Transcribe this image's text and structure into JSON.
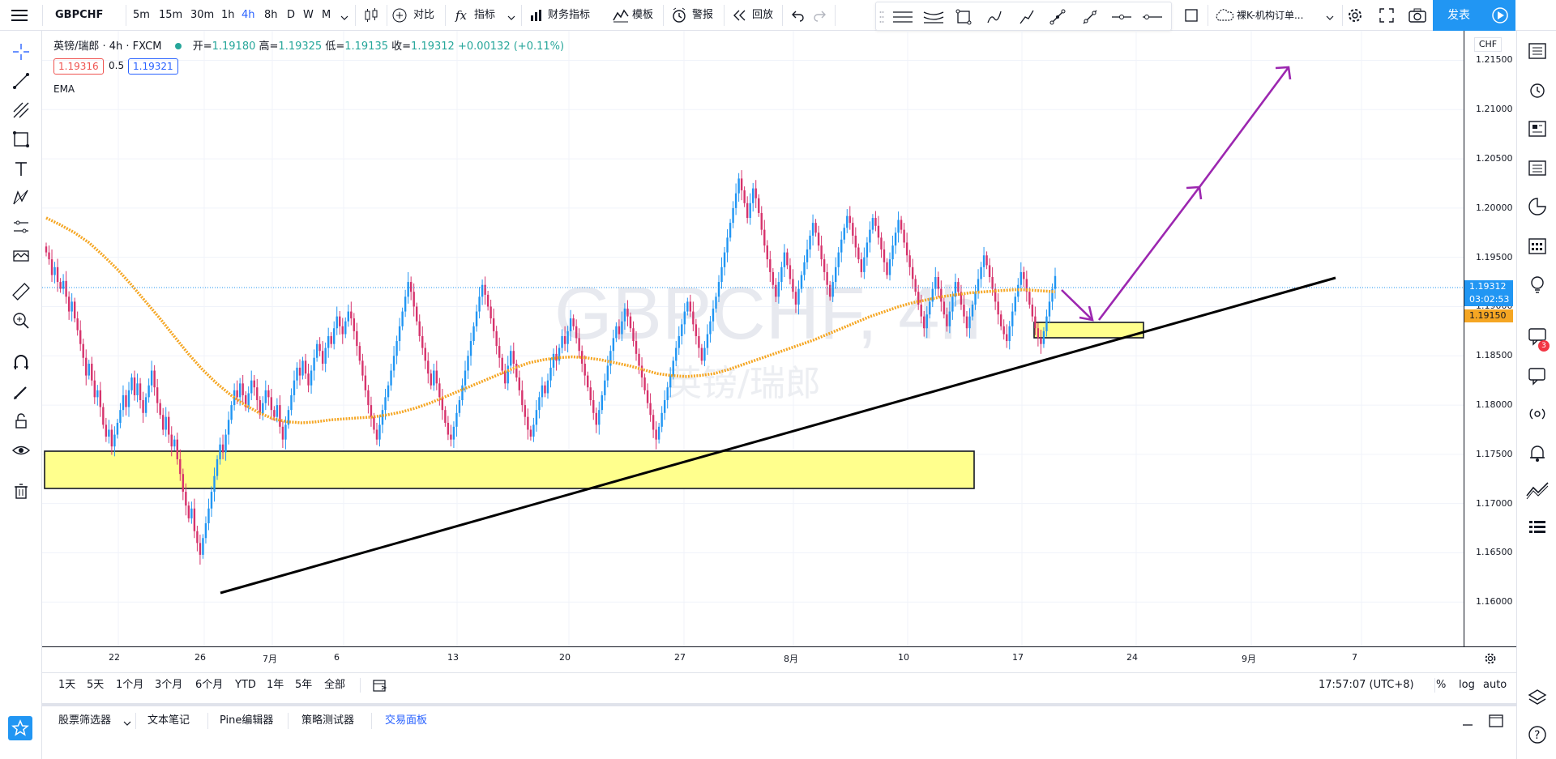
{
  "topbar": {
    "symbol": "GBPCHF",
    "intervals": [
      "5m",
      "15m",
      "30m",
      "1h",
      "4h",
      "8h",
      "D",
      "W",
      "M"
    ],
    "active_interval": "4h",
    "compare_label": "对比",
    "indicators_label": "指标",
    "financials_label": "财务指标",
    "templates_label": "模板",
    "alert_label": "警报",
    "replay_label": "回放",
    "layout_name": "裸K-机构订单...",
    "publish_label": "发表"
  },
  "legend": {
    "title": "英镑/瑞郎 · 4h · FXCM",
    "open_label": "开=",
    "open_value": "1.19180",
    "high_label": "高=",
    "high_value": "1.19325",
    "low_label": "低=",
    "low_value": "1.19135",
    "close_label": "收=",
    "close_value": "1.19312",
    "change": "+0.00132 (+0.11%)",
    "bid": "1.19316",
    "spread": "0.5",
    "ask": "1.19321",
    "indicator": "EMA"
  },
  "watermark": {
    "symbol": "GBPCHF, 4h",
    "name": "英镑/瑞郎"
  },
  "price_axis": {
    "currency": "CHF",
    "ticks": [
      "1.21500",
      "1.21000",
      "1.20500",
      "1.20000",
      "1.19500",
      "1.19000",
      "1.18500",
      "1.18000",
      "1.17500",
      "1.17000",
      "1.16500",
      "1.16000"
    ],
    "last_price": "1.19312",
    "countdown": "03:02:53",
    "ema_value": "1.19150"
  },
  "time_axis": {
    "ticks": [
      "22",
      "26",
      "7月",
      "6",
      "13",
      "20",
      "27",
      "8月",
      "10",
      "17",
      "24",
      "9月",
      "7"
    ]
  },
  "bottombar": {
    "ranges": [
      "1天",
      "5天",
      "1个月",
      "3个月",
      "6个月",
      "YTD",
      "1年",
      "5年",
      "全部"
    ],
    "clock": "17:57:07 (UTC+8)",
    "percent_label": "%",
    "log_label": "log",
    "auto_label": "auto"
  },
  "panels": {
    "tabs": [
      "股票筛选器",
      "文本笔记",
      "Pine编辑器",
      "策略测试器",
      "交易面板"
    ],
    "active": "交易面板"
  },
  "notifications": {
    "badge": "3"
  },
  "colors": {
    "up": "#26a69a",
    "down": "#ef5350",
    "candle_up": "#2196f3",
    "candle_down": "#d6336c",
    "ema": "#f5a623",
    "zone": "#ffff8d",
    "arrow": "#9c27b0",
    "accent": "#2962ff"
  },
  "chart_data": {
    "type": "candlestick",
    "ylim": [
      1.1555,
      1.218
    ],
    "price_level": 1.19312,
    "x": [
      "06-19",
      "06-19",
      "06-19",
      "06-19",
      "06-19",
      "06-19",
      "06-20",
      "06-20",
      "06-20",
      "06-20",
      "06-20",
      "06-20",
      "06-21",
      "06-21",
      "06-21",
      "06-21",
      "06-21",
      "06-21",
      "06-22",
      "06-22",
      "06-22",
      "06-22",
      "06-22",
      "06-22",
      "06-23",
      "06-23",
      "06-23",
      "06-23",
      "06-23",
      "06-23",
      "06-24",
      "06-24",
      "06-24",
      "06-24",
      "06-24",
      "06-24",
      "06-25",
      "06-25",
      "06-25",
      "06-25",
      "06-25",
      "06-25",
      "06-26",
      "06-26",
      "06-26",
      "06-26",
      "06-26",
      "06-26",
      "06-27",
      "06-27",
      "06-27",
      "06-27",
      "06-27",
      "06-27",
      "06-28",
      "06-28",
      "06-28",
      "06-28",
      "06-28",
      "06-28",
      "06-29",
      "06-29",
      "06-29",
      "06-29",
      "06-29",
      "06-29",
      "06-30",
      "06-30",
      "06-30",
      "06-30",
      "06-30",
      "06-30",
      "07-01",
      "07-01",
      "07-01",
      "07-01",
      "07-01",
      "07-01",
      "07-02",
      "07-02",
      "07-02",
      "07-02",
      "07-02",
      "07-02",
      "07-03",
      "07-03",
      "07-03",
      "07-03",
      "07-03",
      "07-03",
      "07-04",
      "07-04",
      "07-04",
      "07-04",
      "07-04",
      "07-04",
      "07-05",
      "07-05",
      "07-05",
      "07-05",
      "07-05",
      "07-05",
      "07-06",
      "07-06",
      "07-06",
      "07-06",
      "07-06",
      "07-06",
      "07-07",
      "07-07",
      "07-07",
      "07-07",
      "07-07",
      "07-07",
      "07-08",
      "07-08",
      "07-08",
      "07-08",
      "07-08",
      "07-08",
      "07-09",
      "07-09",
      "07-09",
      "07-09",
      "07-09",
      "07-09",
      "07-10",
      "07-10",
      "07-10",
      "07-10",
      "07-10",
      "07-10",
      "07-11",
      "07-11",
      "07-11",
      "07-11",
      "07-11",
      "07-11",
      "07-12",
      "07-12",
      "07-12",
      "07-12",
      "07-12",
      "07-12",
      "07-13",
      "07-13",
      "07-13",
      "07-13",
      "07-13",
      "07-13",
      "07-14",
      "07-14",
      "07-14",
      "07-14",
      "07-14",
      "07-14",
      "07-15",
      "07-15",
      "07-15",
      "07-15",
      "07-15",
      "07-15",
      "07-16",
      "07-16",
      "07-16",
      "07-16",
      "07-16",
      "07-16",
      "07-17",
      "07-17",
      "07-17",
      "07-17",
      "07-17",
      "07-17",
      "07-18",
      "07-18",
      "07-18",
      "07-18",
      "07-18",
      "07-18",
      "07-19",
      "07-19",
      "07-19",
      "07-19",
      "07-19",
      "07-19",
      "07-20",
      "07-20",
      "07-20",
      "07-20",
      "07-20",
      "07-20",
      "07-21",
      "07-21",
      "07-21",
      "07-21",
      "07-21",
      "07-21",
      "07-22",
      "07-22",
      "07-22",
      "07-22",
      "07-22",
      "07-22",
      "07-23",
      "07-23",
      "07-23",
      "07-23",
      "07-23",
      "07-23",
      "07-24",
      "07-24",
      "07-24",
      "07-24",
      "07-24",
      "07-24",
      "07-25",
      "07-25",
      "07-25",
      "07-25",
      "07-25",
      "07-25",
      "07-26",
      "07-26",
      "07-26",
      "07-26",
      "07-26",
      "07-26",
      "07-27",
      "07-27",
      "07-27",
      "07-27",
      "07-27",
      "07-27",
      "07-28",
      "07-28",
      "07-28",
      "07-28",
      "07-28",
      "07-28",
      "07-29",
      "07-29",
      "07-29",
      "07-29",
      "07-29",
      "07-29",
      "07-30",
      "07-30",
      "07-30",
      "07-30",
      "07-30",
      "07-30",
      "07-31",
      "07-31",
      "07-31",
      "07-31",
      "07-31",
      "07-31",
      "08-01",
      "08-01",
      "08-01",
      "08-01",
      "08-01",
      "08-01",
      "08-02",
      "08-02",
      "08-02",
      "08-02",
      "08-02",
      "08-02",
      "08-03",
      "08-03",
      "08-03",
      "08-03",
      "08-03",
      "08-03",
      "08-04",
      "08-04",
      "08-04",
      "08-04",
      "08-04",
      "08-04",
      "08-05",
      "08-05",
      "08-05",
      "08-05",
      "08-05",
      "08-05",
      "08-06",
      "08-06",
      "08-06",
      "08-06",
      "08-06",
      "08-06",
      "08-07",
      "08-07",
      "08-07",
      "08-07",
      "08-07",
      "08-07",
      "08-08",
      "08-08",
      "08-08",
      "08-08",
      "08-08",
      "08-08",
      "08-09",
      "08-09",
      "08-09",
      "08-09",
      "08-09",
      "08-09",
      "08-10",
      "08-10",
      "08-10",
      "08-10",
      "08-10",
      "08-10",
      "08-11",
      "08-11",
      "08-11",
      "08-11",
      "08-11",
      "08-11",
      "08-12",
      "08-12",
      "08-12",
      "08-12",
      "08-12",
      "08-12",
      "08-13",
      "08-13",
      "08-13",
      "08-13",
      "08-13",
      "08-13",
      "08-14",
      "08-14",
      "08-14",
      "08-14",
      "08-14",
      "08-14",
      "08-15",
      "08-15",
      "08-15",
      "08-15",
      "08-15",
      "08-15",
      "08-16",
      "08-16",
      "08-16",
      "08-16",
      "08-16",
      "08-16",
      "08-17",
      "08-17",
      "08-17",
      "08-17",
      "08-17",
      "08-17",
      "08-18",
      "08-18",
      "08-18",
      "08-18",
      "08-18"
    ],
    "closes": [
      1.1955,
      1.1948,
      1.1932,
      1.194,
      1.1925,
      1.1918,
      1.1926,
      1.191,
      1.1895,
      1.1905,
      1.1888,
      1.1876,
      1.1862,
      1.1848,
      1.183,
      1.1842,
      1.1825,
      1.1808,
      1.1815,
      1.1798,
      1.178,
      1.1768,
      1.1775,
      1.1758,
      1.177,
      1.1782,
      1.1795,
      1.181,
      1.1798,
      1.1815,
      1.1828,
      1.181,
      1.1822,
      1.1805,
      1.1792,
      1.1808,
      1.182,
      1.1835,
      1.1818,
      1.1802,
      1.179,
      1.1775,
      1.1788,
      1.177,
      1.1758,
      1.1765,
      1.1745,
      1.173,
      1.1712,
      1.1698,
      1.1685,
      1.1695,
      1.1672,
      1.166,
      1.1648,
      1.1665,
      1.168,
      1.1695,
      1.1712,
      1.1728,
      1.1745,
      1.176,
      1.1752,
      1.177,
      1.1785,
      1.18,
      1.1815,
      1.1808,
      1.1822,
      1.181,
      1.1798,
      1.1812,
      1.1825,
      1.1818,
      1.1805,
      1.179,
      1.1802,
      1.1815,
      1.1808,
      1.1795,
      1.1788,
      1.18,
      1.1778,
      1.1765,
      1.178,
      1.1795,
      1.181,
      1.1825,
      1.1838,
      1.183,
      1.1845,
      1.1832,
      1.182,
      1.1835,
      1.1848,
      1.1862,
      1.1855,
      1.1842,
      1.1858,
      1.187,
      1.1862,
      1.1878,
      1.189,
      1.188,
      1.1872,
      1.1885,
      1.1895,
      1.1888,
      1.1875,
      1.186,
      1.1845,
      1.183,
      1.1815,
      1.18,
      1.1788,
      1.1775,
      1.1765,
      1.178,
      1.1795,
      1.1808,
      1.182,
      1.1835,
      1.185,
      1.1865,
      1.188,
      1.1895,
      1.191,
      1.1925,
      1.1915,
      1.19,
      1.1885,
      1.187,
      1.1858,
      1.1845,
      1.1832,
      1.182,
      1.1835,
      1.1822,
      1.1808,
      1.1795,
      1.1782,
      1.177,
      1.1765,
      1.1778,
      1.1792,
      1.1805,
      1.182,
      1.1835,
      1.185,
      1.1865,
      1.188,
      1.1895,
      1.191,
      1.1922,
      1.1912,
      1.19,
      1.1888,
      1.1875,
      1.186,
      1.1848,
      1.1835,
      1.1822,
      1.184,
      1.1855,
      1.1842,
      1.1828,
      1.1815,
      1.18,
      1.1788,
      1.1775,
      1.1768,
      1.178,
      1.1795,
      1.1808,
      1.182,
      1.1812,
      1.1825,
      1.1838,
      1.1852,
      1.1845,
      1.1858,
      1.187,
      1.1862,
      1.1875,
      1.1888,
      1.188,
      1.1868,
      1.1855,
      1.1842,
      1.183,
      1.1818,
      1.1805,
      1.1792,
      1.178,
      1.1795,
      1.181,
      1.1825,
      1.184,
      1.1855,
      1.1868,
      1.188,
      1.1872,
      1.1885,
      1.1898,
      1.189,
      1.1878,
      1.1865,
      1.1852,
      1.184,
      1.1828,
      1.1815,
      1.1802,
      1.179,
      1.1775,
      1.1765,
      1.1778,
      1.1792,
      1.1805,
      1.1818,
      1.183,
      1.1845,
      1.1858,
      1.187,
      1.1882,
      1.1895,
      1.1905,
      1.1895,
      1.1882,
      1.187,
      1.1858,
      1.1845,
      1.1858,
      1.1872,
      1.1885,
      1.1898,
      1.191,
      1.1925,
      1.194,
      1.1955,
      1.197,
      1.1985,
      1.2,
      1.2015,
      1.203,
      1.2018,
      1.2005,
      1.199,
      1.2005,
      1.202,
      1.201,
      1.1995,
      1.1978,
      1.1962,
      1.1948,
      1.1935,
      1.1922,
      1.191,
      1.1925,
      1.194,
      1.1955,
      1.1942,
      1.1928,
      1.1915,
      1.1902,
      1.1918,
      1.1932,
      1.1945,
      1.1958,
      1.1972,
      1.1985,
      1.1975,
      1.1962,
      1.1948,
      1.1935,
      1.1922,
      1.191,
      1.1925,
      1.194,
      1.1955,
      1.1968,
      1.198,
      1.1992,
      1.1985,
      1.1972,
      1.196,
      1.1948,
      1.1935,
      1.195,
      1.1965,
      1.1978,
      1.199,
      1.1982,
      1.197,
      1.1958,
      1.1945,
      1.1932,
      1.1948,
      1.1962,
      1.1975,
      1.1988,
      1.1978,
      1.1965,
      1.1952,
      1.194,
      1.1928,
      1.1915,
      1.1902,
      1.189,
      1.1878,
      1.1892,
      1.1905,
      1.1918,
      1.193,
      1.1918,
      1.1905,
      1.1892,
      1.188,
      1.1895,
      1.191,
      1.1925,
      1.1915,
      1.1902,
      1.189,
      1.1878,
      1.189,
      1.1902,
      1.1915,
      1.1928,
      1.194,
      1.1952,
      1.1942,
      1.193,
      1.1918,
      1.1905,
      1.1892,
      1.188,
      1.1872,
      1.1865,
      1.188,
      1.1895,
      1.191,
      1.1922,
      1.1935,
      1.1928,
      1.1915,
      1.1902,
      1.189,
      1.1878,
      1.1868,
      1.1862,
      1.1875,
      1.189,
      1.1905,
      1.1918,
      1.1931
    ],
    "ema_values": [
      1.199,
      1.1983,
      1.1975,
      1.1965,
      1.1952,
      1.1938,
      1.1922,
      1.1905,
      1.1888,
      1.187,
      1.1852,
      1.1836,
      1.1822,
      1.181,
      1.18,
      1.1792,
      1.1786,
      1.1783,
      1.1782,
      1.1783,
      1.1785,
      1.1786,
      1.1787,
      1.1788,
      1.179,
      1.1793,
      1.1797,
      1.1802,
      1.1808,
      1.1814,
      1.182,
      1.1826,
      1.1832,
      1.1838,
      1.1843,
      1.1846,
      1.1848,
      1.1849,
      1.1848,
      1.1846,
      1.1843,
      1.184,
      1.1836,
      1.1832,
      1.183,
      1.1829,
      1.183,
      1.1832,
      1.1836,
      1.1841,
      1.1846,
      1.1851,
      1.1856,
      1.1861,
      1.1866,
      1.1872,
      1.1878,
      1.1884,
      1.189,
      1.1895,
      1.19,
      1.1904,
      1.1907,
      1.191,
      1.1912,
      1.1914,
      1.1915,
      1.1916,
      1.1917,
      1.1917,
      1.1916,
      1.1915
    ]
  }
}
